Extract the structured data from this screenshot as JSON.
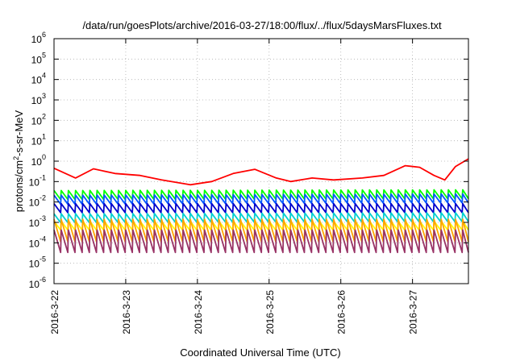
{
  "chart_data": {
    "type": "line",
    "title": "/data/run/goesPlots/archive/2016-03-27/18:00/flux/../flux/5daysMarsFluxes.txt",
    "xlabel": "Coordinated Universal Time (UTC)",
    "ylabel": {
      "base": "protons/cm",
      "sup": "2",
      "rest": "-s-sr-MeV"
    },
    "yscale": "log",
    "ylim": [
      1e-06,
      1000000.0
    ],
    "yticks": [
      {
        "exp": -6,
        "label": "-6"
      },
      {
        "exp": -5,
        "label": "-5"
      },
      {
        "exp": -4,
        "label": "-4"
      },
      {
        "exp": -3,
        "label": "-3"
      },
      {
        "exp": -2,
        "label": "-2"
      },
      {
        "exp": -1,
        "label": "-1"
      },
      {
        "exp": 0,
        "label": "0"
      },
      {
        "exp": 1,
        "label": "1"
      },
      {
        "exp": 2,
        "label": "2"
      },
      {
        "exp": 3,
        "label": "3"
      },
      {
        "exp": 4,
        "label": "4"
      },
      {
        "exp": 5,
        "label": "5"
      },
      {
        "exp": 6,
        "label": "6"
      }
    ],
    "ytick_base": "10",
    "xlim": [
      0,
      5.78
    ],
    "xticks": [
      {
        "day": 0,
        "label": "2016-3-22"
      },
      {
        "day": 1,
        "label": "2016-3-23"
      },
      {
        "day": 2,
        "label": "2016-3-24"
      },
      {
        "day": 3,
        "label": "2016-3-25"
      },
      {
        "day": 4,
        "label": "2016-3-26"
      },
      {
        "day": 5,
        "label": "2016-3-27"
      }
    ],
    "grid": true,
    "series": [
      {
        "color": "#ff0000",
        "points": [
          [
            0,
            0.45
          ],
          [
            0.3,
            0.15
          ],
          [
            0.55,
            0.42
          ],
          [
            0.85,
            0.25
          ],
          [
            1.2,
            0.2
          ],
          [
            1.5,
            0.12
          ],
          [
            1.9,
            0.07
          ],
          [
            2.2,
            0.1
          ],
          [
            2.5,
            0.25
          ],
          [
            2.8,
            0.4
          ],
          [
            3.1,
            0.15
          ],
          [
            3.3,
            0.1
          ],
          [
            3.6,
            0.15
          ],
          [
            3.9,
            0.12
          ],
          [
            4.3,
            0.15
          ],
          [
            4.6,
            0.2
          ],
          [
            4.9,
            0.6
          ],
          [
            5.1,
            0.5
          ],
          [
            5.3,
            0.2
          ],
          [
            5.45,
            0.12
          ],
          [
            5.6,
            0.55
          ],
          [
            5.78,
            1.3
          ]
        ]
      },
      {
        "color": "#00ff00",
        "points": [
          [
            0,
            0.022
          ],
          [
            5.78,
            0.024
          ]
        ]
      },
      {
        "color": "#0055ff",
        "points": [
          [
            0,
            0.013
          ],
          [
            5.78,
            0.015
          ]
        ]
      },
      {
        "color": "#0000cc",
        "points": [
          [
            0,
            0.005
          ],
          [
            5.78,
            0.005
          ]
        ]
      },
      {
        "color": "#00d0d0",
        "points": [
          [
            0,
            0.0016
          ],
          [
            5.78,
            0.0018
          ]
        ]
      },
      {
        "color": "#ffff00",
        "points": [
          [
            0,
            0.0007
          ],
          [
            5.78,
            0.0007
          ]
        ]
      },
      {
        "color": "#ffa500",
        "points": [
          [
            0,
            0.0004
          ],
          [
            5.78,
            0.0004
          ]
        ]
      },
      {
        "color": "#993366",
        "points": [
          [
            0,
            0.00012
          ],
          [
            5.78,
            0.00012
          ]
        ]
      }
    ]
  }
}
